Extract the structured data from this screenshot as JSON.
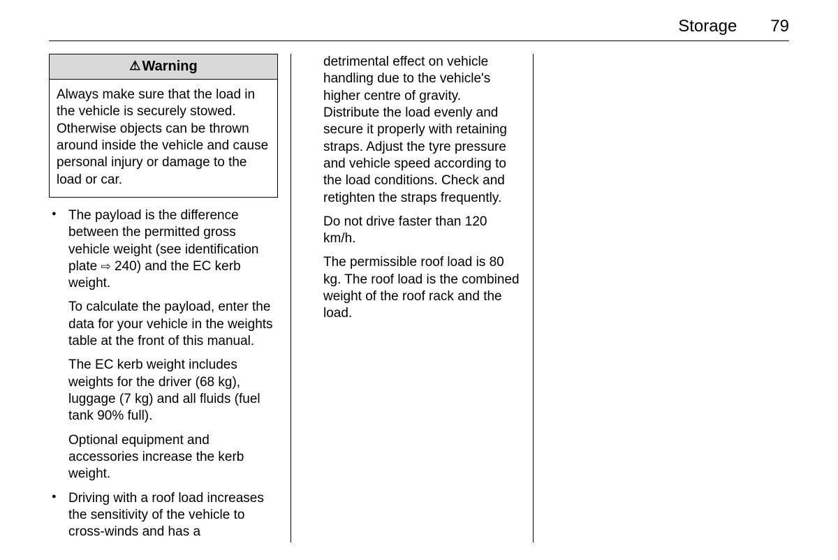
{
  "header": {
    "title": "Storage",
    "page_number": "79"
  },
  "warning": {
    "label": "Warning",
    "body": "Always make sure that the load in the vehicle is securely stowed. Otherwise objects can be thrown around inside the vehicle and cause personal injury or damage to the load or car."
  },
  "col1": {
    "bullet1_p1a": "The payload is the difference between the permitted gross vehicle weight (see identification plate ",
    "bullet1_ref": "240",
    "bullet1_p1b": ") and the EC kerb weight.",
    "bullet1_p2": "To calculate the payload, enter the data for your vehicle in the weights table at the front of this manual.",
    "bullet1_p3": "The EC kerb weight includes weights for the driver (68 kg), luggage (7 kg) and all fluids (fuel tank 90% full).",
    "bullet1_p4": "Optional equipment and accessories increase the kerb weight.",
    "bullet2_p1": "Driving with a roof load increases the sensitivity of the vehicle to cross-winds and has a"
  },
  "col2": {
    "cont_p1": "detrimental effect on vehicle handling due to the vehicle's higher centre of gravity. Distribute the load evenly and secure it properly with retaining straps. Adjust the tyre pressure and vehicle speed according to the load conditions. Check and retighten the straps frequently.",
    "cont_p2": "Do not drive faster than 120 km/h.",
    "cont_p3": "The permissible roof load is 80 kg. The roof load is the combined weight of the roof rack and the load."
  }
}
